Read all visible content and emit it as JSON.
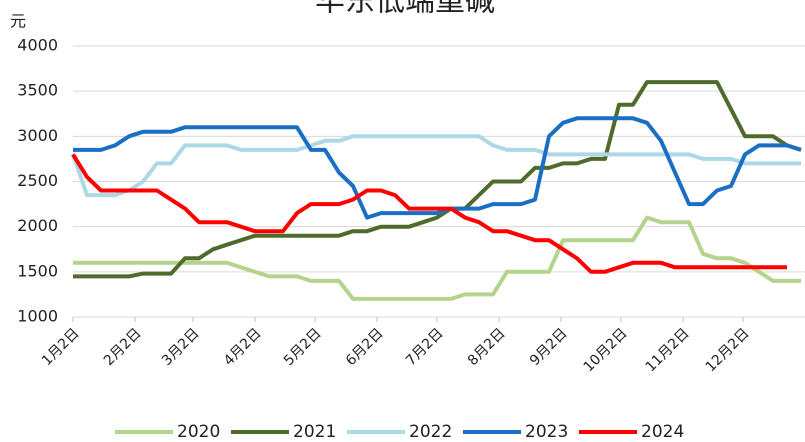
{
  "chart_data": {
    "type": "line",
    "title": "华东低端重碱",
    "y_unit": "元",
    "x": [
      0,
      7,
      14,
      21,
      28,
      35,
      42,
      49,
      56,
      63,
      70,
      77,
      84,
      91,
      98,
      105,
      112,
      119,
      126,
      133,
      140,
      147,
      154,
      161,
      168,
      175,
      182,
      189,
      196,
      203,
      210,
      217,
      224,
      231,
      238,
      245,
      252,
      259,
      266,
      273,
      280,
      287,
      294,
      301,
      308,
      315,
      322,
      329,
      336,
      343,
      350,
      357,
      364
    ],
    "xlim": [
      0,
      366
    ],
    "xticks": [
      {
        "value": 0,
        "label": "1月2日"
      },
      {
        "value": 31,
        "label": "2月2日"
      },
      {
        "value": 60,
        "label": "3月2日"
      },
      {
        "value": 91,
        "label": "4月2日"
      },
      {
        "value": 121,
        "label": "5月2日"
      },
      {
        "value": 152,
        "label": "6月2日"
      },
      {
        "value": 182,
        "label": "7月2日"
      },
      {
        "value": 213,
        "label": "8月2日"
      },
      {
        "value": 244,
        "label": "9月2日"
      },
      {
        "value": 274,
        "label": "10月2日"
      },
      {
        "value": 305,
        "label": "11月2日"
      },
      {
        "value": 335,
        "label": "12月2日"
      }
    ],
    "ylim": [
      1000,
      4000
    ],
    "yticks": [
      1000,
      1500,
      2000,
      2500,
      3000,
      3500,
      4000
    ],
    "grid": true,
    "legend": "bottom",
    "series": [
      {
        "name": "2020",
        "color": "#b4d48e",
        "values": [
          1600,
          1600,
          1600,
          1600,
          1600,
          1600,
          1600,
          1600,
          1600,
          1600,
          1600,
          1600,
          1550,
          1500,
          1450,
          1450,
          1450,
          1400,
          1400,
          1400,
          1200,
          1200,
          1200,
          1200,
          1200,
          1200,
          1200,
          1200,
          1250,
          1250,
          1250,
          1500,
          1500,
          1500,
          1500,
          1850,
          1850,
          1850,
          1850,
          1850,
          1850,
          2100,
          2050,
          2050,
          2050,
          1700,
          1650,
          1650,
          1600,
          1500,
          1400,
          1400,
          1400
        ]
      },
      {
        "name": "2021",
        "color": "#4e6b2c",
        "values": [
          1450,
          1450,
          1450,
          1450,
          1450,
          1480,
          1480,
          1480,
          1650,
          1650,
          1750,
          1800,
          1850,
          1900,
          1900,
          1900,
          1900,
          1900,
          1900,
          1900,
          1950,
          1950,
          2000,
          2000,
          2000,
          2050,
          2100,
          2200,
          2200,
          2350,
          2500,
          2500,
          2500,
          2650,
          2650,
          2700,
          2700,
          2750,
          2750,
          3350,
          3350,
          3600,
          3600,
          3600,
          3600,
          3600,
          3600,
          3300,
          3000,
          3000,
          3000,
          2900,
          2850
        ]
      },
      {
        "name": "2022",
        "color": "#add8e6",
        "values": [
          2800,
          2350,
          2350,
          2350,
          2400,
          2500,
          2700,
          2700,
          2900,
          2900,
          2900,
          2900,
          2850,
          2850,
          2850,
          2850,
          2850,
          2900,
          2950,
          2950,
          3000,
          3000,
          3000,
          3000,
          3000,
          3000,
          3000,
          3000,
          3000,
          3000,
          2900,
          2850,
          2850,
          2850,
          2800,
          2800,
          2800,
          2800,
          2800,
          2800,
          2800,
          2800,
          2800,
          2800,
          2800,
          2750,
          2750,
          2750,
          2700,
          2700,
          2700,
          2700,
          2700
        ]
      },
      {
        "name": "2023",
        "color": "#1a6fc4",
        "values": [
          2850,
          2850,
          2850,
          2900,
          3000,
          3050,
          3050,
          3050,
          3100,
          3100,
          3100,
          3100,
          3100,
          3100,
          3100,
          3100,
          3100,
          2850,
          2850,
          2600,
          2450,
          2100,
          2150,
          2150,
          2150,
          2150,
          2150,
          2200,
          2200,
          2200,
          2250,
          2250,
          2250,
          2300,
          3000,
          3150,
          3200,
          3200,
          3200,
          3200,
          3200,
          3150,
          2950,
          2600,
          2250,
          2250,
          2400,
          2450,
          2800,
          2900,
          2900,
          2900,
          2850
        ]
      },
      {
        "name": "2024",
        "color": "#ff0000",
        "values": [
          2800,
          2550,
          2400,
          2400,
          2400,
          2400,
          2400,
          2300,
          2200,
          2050,
          2050,
          2050,
          2000,
          1950,
          1950,
          1950,
          2150,
          2250,
          2250,
          2250,
          2300,
          2400,
          2400,
          2350,
          2200,
          2200,
          2200,
          2200,
          2100,
          2050,
          1950,
          1950,
          1900,
          1850,
          1850,
          1750,
          1650,
          1500,
          1500,
          1550,
          1600,
          1600,
          1600,
          1550,
          1550,
          1550,
          1550,
          1550,
          1550,
          1550,
          1550,
          1550,
          null
        ]
      }
    ]
  }
}
